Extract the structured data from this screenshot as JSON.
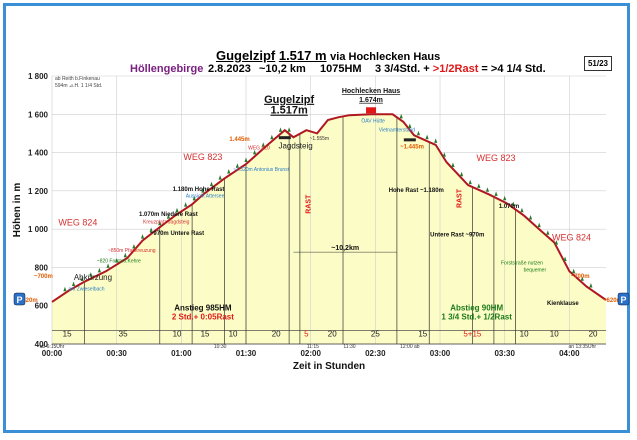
{
  "header": {
    "title_peak": "Gugelzipf",
    "title_height": "1.517 m",
    "title_via": "via Hochlecken Haus",
    "region": "Höllengebirge",
    "date": "2.8.2023",
    "distance": "~10,2 km",
    "ascent": "1075HM",
    "time_summary_a": "3 3/4Std. +",
    "time_summary_rast": ">1/2Rast",
    "time_summary_b": "= >4 1/4 Std.",
    "page_badge": "51/23"
  },
  "start_note": {
    "line1": "ab Reith b.Finkenau",
    "line2": "594m  ⊿.H. 1 1/4 Std."
  },
  "colors": {
    "fill": "#fcfcc6",
    "profile": "#b01820",
    "grid": "#cfcfcf",
    "frame": "#3a8fd6",
    "weg": "#d63030",
    "label_orange": "#e05a00",
    "label_blue": "#2a7fc8",
    "label_green": "#1a7a1a",
    "region_purple": "#7a2080",
    "rast_red": "#e01818"
  },
  "chart_data": {
    "type": "area",
    "title": "Gugelzipf 1.517 m via Hochlecken Haus",
    "ylabel": "Höhen in m",
    "xlabel": "Zeit in Stunden",
    "ylim": [
      400,
      1800
    ],
    "xlim": [
      0,
      257
    ],
    "y_ticks": [
      400,
      600,
      800,
      1000,
      1200,
      1400,
      1600,
      1800
    ],
    "y_tick_labels": [
      "400",
      "600",
      "800",
      "1 000",
      "1 200",
      "1 400",
      "1 600",
      "1 800"
    ],
    "x_ticks": [
      0,
      30,
      60,
      90,
      120,
      150,
      180,
      210,
      240
    ],
    "x_tick_labels": [
      "00:00",
      "00:30",
      "01:00",
      "01:30",
      "02:00",
      "02:30",
      "03:00",
      "03:30",
      "04:00"
    ],
    "profile": {
      "x_minutes": [
        0,
        8,
        15,
        25,
        35,
        42,
        50,
        57,
        65,
        70,
        80,
        90,
        100,
        108,
        112,
        118,
        123,
        128,
        133,
        138,
        148,
        158,
        163,
        168,
        178,
        183,
        193,
        203,
        211,
        219,
        227,
        233,
        240,
        248,
        257
      ],
      "elevation_m": [
        620,
        680,
        725,
        780,
        850,
        940,
        1010,
        1070,
        1130,
        1180,
        1265,
        1340,
        1440,
        1517,
        1480,
        1517,
        1500,
        1570,
        1585,
        1595,
        1600,
        1600,
        1560,
        1490,
        1440,
        1350,
        1230,
        1180,
        1135,
        1070,
        990,
        930,
        780,
        700,
        630
      ]
    },
    "segment_times_min": [
      "15",
      "35",
      "10",
      "15",
      "10",
      "20",
      "5",
      "20",
      "25",
      "15",
      "5+15",
      "10",
      "10",
      "20"
    ],
    "segment_labels_x_minutes": [
      7,
      33,
      58,
      71,
      84,
      104,
      118,
      130,
      150,
      172,
      195,
      219,
      233,
      251
    ],
    "segment_bounds_x_minutes": [
      15,
      50,
      65,
      80,
      90,
      110,
      115,
      135,
      160,
      175,
      195,
      205,
      215
    ],
    "time_marks": [
      {
        "x_min": 0,
        "text": "ab 6:15Uhr"
      },
      {
        "x_min": 78,
        "text": "10:30"
      },
      {
        "x_min": 121,
        "text": "11:15"
      },
      {
        "x_min": 138,
        "text": "11:30"
      },
      {
        "x_min": 166,
        "text": "12:00 ab"
      },
      {
        "x_min": 246,
        "text": "an 13:35Uhr"
      }
    ],
    "annotations": [
      {
        "text": "WEG 824",
        "x_min": 12,
        "elev": 1020,
        "kind": "weg"
      },
      {
        "text": "WEG 823",
        "x_min": 70,
        "elev": 1360,
        "kind": "weg"
      },
      {
        "text": "WEG 823",
        "x_min": 206,
        "elev": 1355,
        "kind": "weg"
      },
      {
        "text": "WEG 824",
        "x_min": 241,
        "elev": 940,
        "kind": "weg"
      },
      {
        "text": "Gugelzipf",
        "x_min": 110,
        "elev": 1660,
        "kind": "peak"
      },
      {
        "text": "1.517m",
        "x_min": 110,
        "elev": 1603,
        "kind": "peak"
      },
      {
        "text": "Hochlecken Haus",
        "x_min": 148,
        "elev": 1710,
        "kind": "hut"
      },
      {
        "text": "1.674m",
        "x_min": 148,
        "elev": 1665,
        "kind": "hut"
      },
      {
        "text": "ÖAV Hütte",
        "x_min": 149,
        "elev": 1558,
        "kind": "tiny_blue"
      },
      {
        "text": "Vietnamterstand",
        "x_min": 160,
        "elev": 1510,
        "kind": "tiny_blue"
      },
      {
        "text": "Jagdsteig",
        "x_min": 113,
        "elev": 1420,
        "kind": "path"
      },
      {
        "text": "~1.555m",
        "x_min": 124,
        "elev": 1465,
        "kind": "tiny"
      },
      {
        "text": "1.445m",
        "x_min": 87,
        "elev": 1460,
        "kind": "orange"
      },
      {
        "text": "WEG 820",
        "x_min": 96,
        "elev": 1415,
        "kind": "tiny_red"
      },
      {
        "text": "~1.320m Antonius Brunst",
        "x_min": 97,
        "elev": 1305,
        "kind": "tiny_blue"
      },
      {
        "text": "1.180m Hohe Rast",
        "x_min": 68,
        "elev": 1200,
        "kind": "small"
      },
      {
        "text": "Aussicht Attersee",
        "x_min": 71,
        "elev": 1165,
        "kind": "tiny_blue"
      },
      {
        "text": "1.070m Niedere Rast",
        "x_min": 54,
        "elev": 1068,
        "kind": "small"
      },
      {
        "text": "Kreuzplatz Jagdsteig",
        "x_min": 53,
        "elev": 1030,
        "kind": "tiny_red"
      },
      {
        "text": "~970m Untere Rast",
        "x_min": 58,
        "elev": 970,
        "kind": "small"
      },
      {
        "text": "~850m Pfadkreuzung",
        "x_min": 37,
        "elev": 880,
        "kind": "tiny_red"
      },
      {
        "text": "~820 Forststr.Kehre",
        "x_min": 31,
        "elev": 825,
        "kind": "tiny_green"
      },
      {
        "text": "~700m",
        "x_min": -4,
        "elev": 745,
        "kind": "orange"
      },
      {
        "text": "Abkürzung",
        "x_min": 19,
        "elev": 735,
        "kind": "path"
      },
      {
        "text": "am Zwieselbach",
        "x_min": 16,
        "elev": 680,
        "kind": "tiny_blue"
      },
      {
        "text": "~620m",
        "x_min": -11,
        "elev": 620,
        "kind": "orange"
      },
      {
        "text": "Hohe Rast ~1.180m",
        "x_min": 169,
        "elev": 1195,
        "kind": "small"
      },
      {
        "text": "1.070m",
        "x_min": 212,
        "elev": 1110,
        "kind": "small"
      },
      {
        "text": "Untere Rast ~970m",
        "x_min": 188,
        "elev": 962,
        "kind": "small"
      },
      {
        "text": "~1.445m",
        "x_min": 167,
        "elev": 1420,
        "kind": "orange"
      },
      {
        "text": "Forststraße nutzen",
        "x_min": 218,
        "elev": 815,
        "kind": "tiny_green"
      },
      {
        "text": "bequemer",
        "x_min": 224,
        "elev": 780,
        "kind": "tiny_green"
      },
      {
        "text": "~700m",
        "x_min": 245,
        "elev": 745,
        "kind": "orange"
      },
      {
        "text": "Kienklause",
        "x_min": 237,
        "elev": 605,
        "kind": "small"
      },
      {
        "text": "~620m",
        "x_min": 260,
        "elev": 620,
        "kind": "orange"
      }
    ],
    "rast_labels": [
      {
        "text": "RAST",
        "x_min": 120,
        "elev": 1130
      },
      {
        "text": "RAST",
        "x_min": 190,
        "elev": 1160
      }
    ],
    "distance_label": "~10,2km",
    "ascent_box": {
      "line1": "Anstieg 985HM",
      "line2": "2 Std.+ 0:05Rast"
    },
    "descent_box": {
      "line1": "Abstieg 90HM",
      "line2": "1 3/4 Std.+ 1/2Rast"
    },
    "parking": "P"
  }
}
